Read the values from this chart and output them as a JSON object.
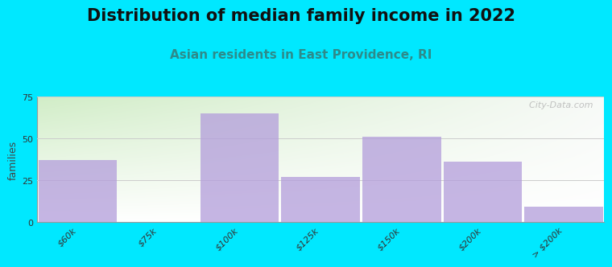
{
  "title": "Distribution of median family income in 2022",
  "subtitle": "Asian residents in East Providence, RI",
  "ylabel": "families",
  "categories": [
    "$60k",
    "$75k",
    "$100k",
    "$125k",
    "$150k",
    "$200k",
    "> $200k"
  ],
  "values": [
    37,
    0,
    65,
    27,
    51,
    36,
    9
  ],
  "bar_color": "#b39ddb",
  "bar_alpha": 0.75,
  "background_outer": "#00e8ff",
  "ylim": [
    0,
    75
  ],
  "yticks": [
    0,
    25,
    50,
    75
  ],
  "title_fontsize": 15,
  "subtitle_fontsize": 11,
  "ylabel_fontsize": 9,
  "tick_label_fontsize": 8,
  "watermark": "  City-Data.com"
}
